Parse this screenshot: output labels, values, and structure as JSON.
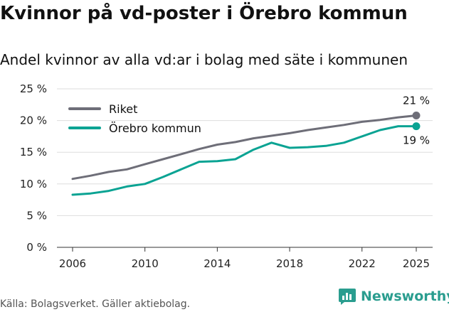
{
  "title": "Kvinnor på vd-poster i Örebro kommun",
  "subtitle": "Andel kvinnor av alla vd:ar i bolag med säte i kommunen",
  "source": "Källa: Bolagsverket. Gäller aktiebolag.",
  "brand": "Newsworthy",
  "chart_data": {
    "type": "line",
    "title": "Kvinnor på vd-poster i Örebro kommun",
    "subtitle": "Andel kvinnor av alla vd:ar i bolag med säte i kommunen",
    "xlabel": "",
    "ylabel": "",
    "x": [
      2006,
      2007,
      2008,
      2009,
      2010,
      2011,
      2012,
      2013,
      2014,
      2015,
      2016,
      2017,
      2018,
      2019,
      2020,
      2021,
      2022,
      2023,
      2024,
      2025
    ],
    "xticks": [
      2006,
      2010,
      2014,
      2018,
      2022,
      2025
    ],
    "xtick_labels": [
      "2006",
      "2010",
      "2014",
      "2018",
      "2022",
      "2025"
    ],
    "ylim": [
      0,
      25
    ],
    "yticks": [
      0,
      5,
      10,
      15,
      20,
      25
    ],
    "ytick_labels": [
      "0 %",
      "5 %",
      "10 %",
      "15 %",
      "20 %",
      "25 %"
    ],
    "grid": true,
    "legend_position": "top-left",
    "series": [
      {
        "name": "Riket",
        "color": "#6e6e78",
        "values": [
          10.8,
          11.3,
          11.9,
          12.3,
          13.1,
          13.9,
          14.7,
          15.5,
          16.2,
          16.6,
          17.2,
          17.6,
          18.0,
          18.5,
          18.9,
          19.3,
          19.8,
          20.1,
          20.5,
          20.8
        ],
        "end_label": "21 %"
      },
      {
        "name": "Örebro kommun",
        "color": "#0aa393",
        "values": [
          8.3,
          8.5,
          8.9,
          9.6,
          10.0,
          11.1,
          12.3,
          13.5,
          13.6,
          13.9,
          15.4,
          16.5,
          15.7,
          15.8,
          16.0,
          16.5,
          17.5,
          18.5,
          19.1,
          19.1
        ],
        "end_label": "19 %"
      }
    ]
  }
}
